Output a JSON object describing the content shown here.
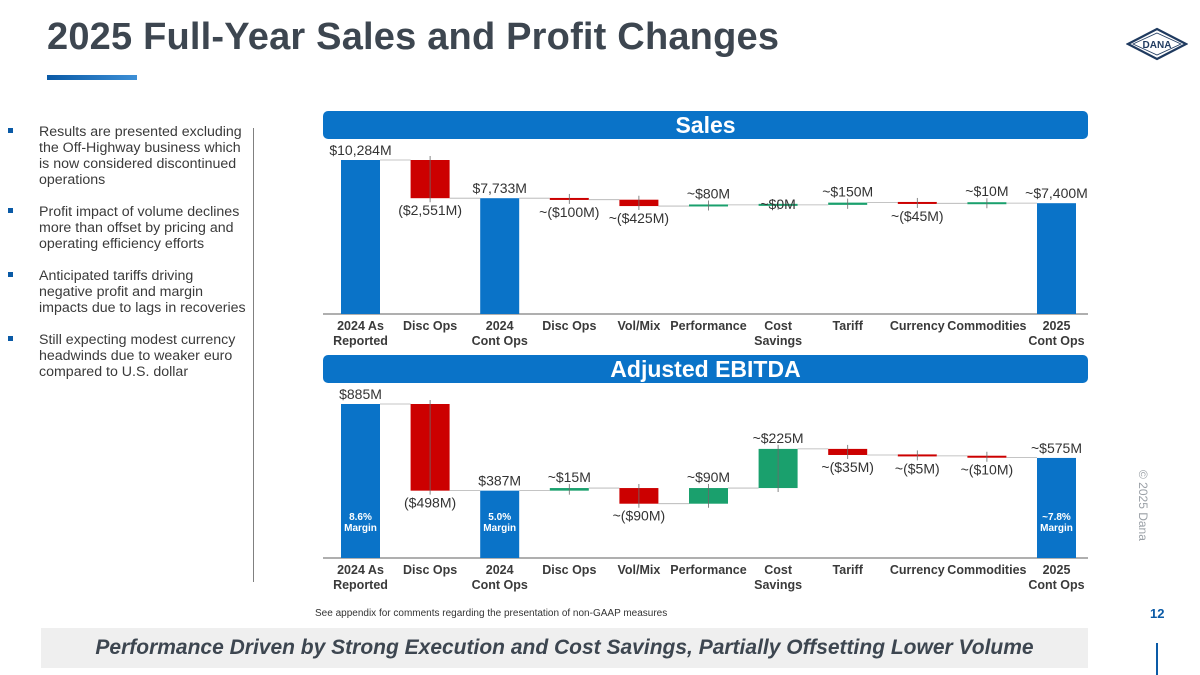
{
  "page": {
    "title": "2025 Full-Year Sales and Profit Changes",
    "logo_text": "DANA",
    "bullets": [
      "Results are presented excluding the Off-Highway business which is now considered discontinued operations",
      "Profit impact of volume declines more than offset by pricing and operating efficiency efforts",
      "Anticipated tariffs driving negative profit and margin impacts due to lags in recoveries",
      "Still expecting modest currency headwinds due to weaker euro compared to U.S. dollar"
    ],
    "footnote": "See appendix for comments regarding the presentation of non-GAAP measures",
    "page_number": "12",
    "copyright": "© 2025 Dana",
    "tagline": "Performance Driven by Strong Execution and Cost Savings, Partially Offsetting Lower Volume"
  },
  "colors": {
    "total": "#0a73c8",
    "negative": "#cc0000",
    "positive": "#1aa06d",
    "banner": "#0a73c8",
    "accent": "#0a5aa6"
  },
  "chart_data": [
    {
      "type": "waterfall",
      "title": "Sales",
      "unit": "$M",
      "categories": [
        [
          "2024 As",
          "Reported"
        ],
        [
          "Disc Ops"
        ],
        [
          "2024",
          "Cont Ops"
        ],
        [
          "Disc Ops"
        ],
        [
          "Vol/Mix"
        ],
        [
          "Performance"
        ],
        [
          "Cost",
          "Savings"
        ],
        [
          "Tariff"
        ],
        [
          "Currency"
        ],
        [
          "Commodities"
        ],
        [
          "2025",
          "Cont Ops"
        ]
      ],
      "kinds": [
        "total",
        "delta",
        "total",
        "delta",
        "delta",
        "delta",
        "delta",
        "delta",
        "delta",
        "delta",
        "total"
      ],
      "values": [
        10284,
        -2551,
        7733,
        -100,
        -425,
        80,
        0,
        150,
        -45,
        10,
        7400
      ],
      "labels": [
        "$10,284M",
        "($2,551M)",
        "$7,733M",
        "~($100M)",
        "~($425M)",
        "~$80M",
        "~$0M",
        "~$150M",
        "~($45M)",
        "~$10M",
        "~$7,400M"
      ],
      "bar_notes": [
        "",
        "",
        "",
        "",
        "",
        "",
        "",
        "",
        "",
        "",
        ""
      ],
      "ylim": [
        0,
        10284
      ]
    },
    {
      "type": "waterfall",
      "title": "Adjusted EBITDA",
      "unit": "$M",
      "categories": [
        [
          "2024 As",
          "Reported"
        ],
        [
          "Disc Ops"
        ],
        [
          "2024",
          "Cont Ops"
        ],
        [
          "Disc Ops"
        ],
        [
          "Vol/Mix"
        ],
        [
          "Performance"
        ],
        [
          "Cost",
          "Savings"
        ],
        [
          "Tariff"
        ],
        [
          "Currency"
        ],
        [
          "Commodities"
        ],
        [
          "2025",
          "Cont Ops"
        ]
      ],
      "kinds": [
        "total",
        "delta",
        "total",
        "delta",
        "delta",
        "delta",
        "delta",
        "delta",
        "delta",
        "delta",
        "total"
      ],
      "values": [
        885,
        -498,
        387,
        15,
        -90,
        90,
        225,
        -35,
        -5,
        -10,
        575
      ],
      "labels": [
        "$885M",
        "($498M)",
        "$387M",
        "~$15M",
        "~($90M)",
        "~$90M",
        "~$225M",
        "~($35M)",
        "~($5M)",
        "~($10M)",
        "~$575M"
      ],
      "bar_notes": [
        [
          "8.6%",
          "Margin"
        ],
        "",
        [
          "5.0%",
          "Margin"
        ],
        "",
        "",
        "",
        "",
        "",
        "",
        "",
        [
          "~7.8%",
          "Margin"
        ]
      ],
      "ylim": [
        0,
        885
      ]
    }
  ]
}
